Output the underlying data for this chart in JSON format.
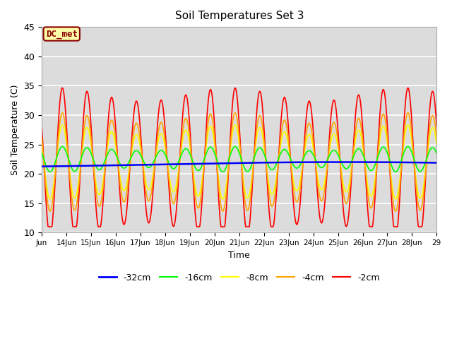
{
  "title": "Soil Temperatures Set 3",
  "xlabel": "Time",
  "ylabel": "Soil Temperature (C)",
  "ylim": [
    10,
    45
  ],
  "yticks": [
    10,
    15,
    20,
    25,
    30,
    35,
    40,
    45
  ],
  "xtick_labels": [
    "Jun",
    "14Jun",
    "15Jun",
    "16Jun",
    "17Jun",
    "18Jun",
    "19Jun",
    "20Jun",
    "21Jun",
    "22Jun",
    "23Jun",
    "24Jun",
    "25Jun",
    "26Jun",
    "27Jun",
    "28Jun",
    "29"
  ],
  "background_color": "#dcdcdc",
  "plot_bg_color": "#dcdcdc",
  "annotation_text": "DC_met",
  "annotation_bg": "#ffffaa",
  "annotation_edge": "#8b0000",
  "annotation_text_color": "#8b0000",
  "legend_entries": [
    "-32cm",
    "-16cm",
    "-8cm",
    "-4cm",
    "-2cm"
  ],
  "legend_colors": [
    "blue",
    "green",
    "yellow",
    "orange",
    "red"
  ],
  "deep_mean": 22.0,
  "deep_amplitude": 0.4,
  "mid_mean": 22.5,
  "mid_amplitude": 1.5,
  "shallow_amplitude_8": 5.0,
  "shallow_amplitude_4": 7.0,
  "shallow_amplitude_2": 11.0,
  "n_days": 16,
  "samples_per_day": 48
}
